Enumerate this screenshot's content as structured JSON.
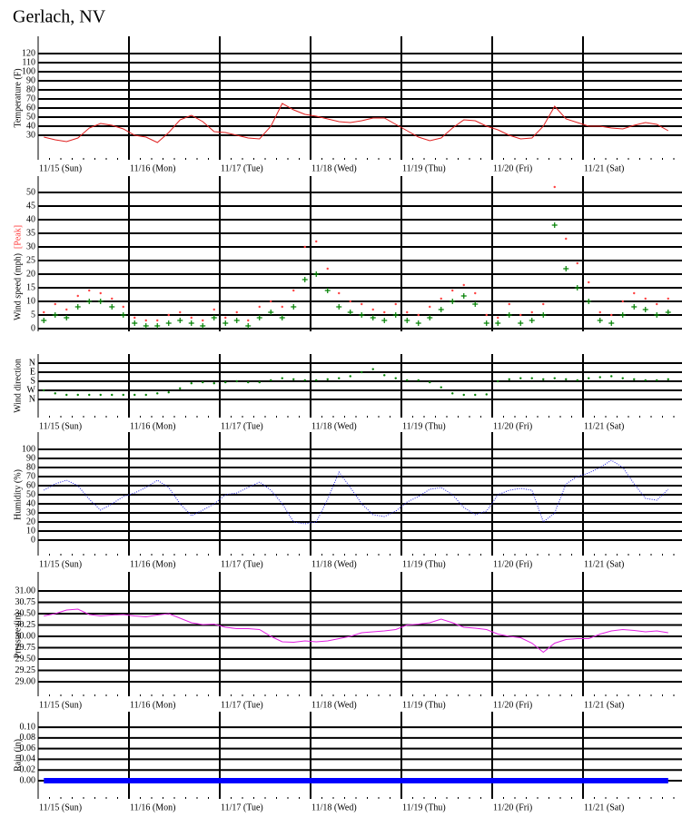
{
  "title": "Gerlach, NV",
  "chart_data": [
    {
      "type": "line",
      "ylabel": "Temperature (F)",
      "color": "#e02020",
      "categories": [
        "11/15 (Sun)",
        "11/16 (Mon)",
        "11/17 (Tue)",
        "11/18 (Wed)",
        "11/19 (Thu)",
        "11/20 (Fri)",
        "11/21 (Sat)"
      ],
      "ylim": [
        3,
        139
      ],
      "yticks": [
        30,
        40,
        50,
        60,
        70,
        80,
        90,
        100,
        110,
        120
      ],
      "grid": true,
      "series": [
        {
          "color": "#e02020",
          "values": [
            [
              28,
              25,
              23,
              27,
              38,
              43,
              41,
              37
            ],
            [
              30,
              28,
              22,
              33,
              47,
              52,
              45,
              34
            ],
            [
              33,
              30,
              27,
              26,
              40,
              65,
              58,
              53
            ],
            [
              51,
              48,
              45,
              44,
              46,
              49,
              49,
              42
            ],
            [
              35,
              28,
              24,
              27,
              38,
              47,
              46,
              40
            ],
            [
              36,
              30,
              26,
              27,
              40,
              62,
              48,
              44
            ],
            [
              40,
              40,
              38,
              37,
              41,
              44,
              42,
              35
            ]
          ]
        }
      ]
    },
    {
      "type": "scatter",
      "ylabel": "Wind speed (mph)",
      "ylim": [
        -1,
        56
      ],
      "yticks": [
        0,
        5,
        10,
        15,
        20,
        25,
        30,
        35,
        40,
        45,
        50
      ],
      "grid": true,
      "series": [
        {
          "name": "[Peak]",
          "color": "#ff4040",
          "marker": "dot",
          "values": [
            [
              6,
              9,
              7,
              12,
              14,
              13,
              11,
              8
            ],
            [
              4,
              3,
              3,
              5,
              6,
              4,
              3,
              7
            ],
            [
              4,
              6,
              3,
              8,
              10,
              8,
              14,
              30
            ],
            [
              32,
              22,
              13,
              10,
              9,
              7,
              6,
              9
            ],
            [
              6,
              5,
              8,
              11,
              14,
              16,
              13,
              5
            ],
            [
              4,
              9,
              5,
              6,
              9,
              52,
              33,
              24
            ],
            [
              17,
              6,
              5,
              10,
              13,
              11,
              9,
              11
            ]
          ]
        },
        {
          "color": "#008000",
          "marker": "plus",
          "values": [
            [
              3,
              5,
              4,
              8,
              10,
              10,
              8,
              5
            ],
            [
              2,
              1,
              1,
              2,
              3,
              2,
              1,
              4
            ],
            [
              2,
              3,
              1,
              4,
              6,
              4,
              8,
              18
            ],
            [
              20,
              14,
              8,
              6,
              5,
              4,
              3,
              5
            ],
            [
              3,
              2,
              4,
              7,
              10,
              12,
              9,
              2
            ],
            [
              2,
              5,
              2,
              3,
              5,
              38,
              22,
              15
            ],
            [
              10,
              3,
              2,
              5,
              8,
              7,
              5,
              6
            ]
          ]
        }
      ]
    },
    {
      "type": "scatter",
      "ylabel": "Wind direction",
      "categories": [
        "11/15 (Sun)",
        "11/16 (Mon)",
        "11/17 (Tue)",
        "11/18 (Wed)",
        "11/19 (Thu)",
        "11/20 (Fri)",
        "11/21 (Sat)"
      ],
      "ylim": [
        540,
        -90
      ],
      "yticks": [
        {
          "value": 0,
          "label": "N"
        },
        {
          "value": 90,
          "label": "E"
        },
        {
          "value": 180,
          "label": "S"
        },
        {
          "value": 270,
          "label": "W"
        },
        {
          "value": 360,
          "label": "N"
        }
      ],
      "grid": true,
      "series": [
        {
          "color": "#008000",
          "marker": "dot",
          "values": [
            [
              270,
              300,
              315,
              315,
              315,
              315,
              315,
              315
            ],
            [
              315,
              315,
              300,
              290,
              250,
              200,
              190,
              200
            ],
            [
              190,
              180,
              190,
              190,
              170,
              150,
              160,
              170
            ],
            [
              170,
              160,
              150,
              130,
              90,
              60,
              120,
              150
            ],
            [
              170,
              170,
              190,
              240,
              300,
              315,
              315,
              310
            ],
            [
              180,
              160,
              150,
              150,
              160,
              150,
              160,
              170
            ],
            [
              150,
              140,
              130,
              150,
              160,
              170,
              170,
              160
            ]
          ]
        }
      ]
    },
    {
      "type": "line",
      "ylabel": "Humidity (%)",
      "linestyle": "dotted",
      "categories": [
        "11/15 (Sun)",
        "11/16 (Mon)",
        "11/17 (Tue)",
        "11/18 (Wed)",
        "11/19 (Thu)",
        "11/20 (Fri)",
        "11/21 (Sat)"
      ],
      "ylim": [
        -17,
        119
      ],
      "yticks": [
        0,
        10,
        20,
        30,
        40,
        50,
        60,
        70,
        80,
        90,
        100
      ],
      "grid": true,
      "series": [
        {
          "color": "#2020e0",
          "values": [
            [
              55,
              62,
              66,
              60,
              45,
              33,
              40,
              48
            ],
            [
              52,
              58,
              66,
              58,
              40,
              27,
              33,
              40
            ],
            [
              50,
              52,
              58,
              64,
              55,
              40,
              20,
              18
            ],
            [
              20,
              45,
              75,
              58,
              40,
              28,
              26,
              32
            ],
            [
              42,
              48,
              56,
              58,
              50,
              36,
              28,
              32
            ],
            [
              50,
              55,
              57,
              55,
              20,
              30,
              62,
              70
            ],
            [
              74,
              80,
              88,
              80,
              62,
              46,
              44,
              56
            ]
          ]
        }
      ]
    },
    {
      "type": "line",
      "ylabel": "Pressure (in)",
      "categories": [
        "11/15 (Sun)",
        "11/16 (Mon)",
        "11/17 (Tue)",
        "11/18 (Wed)",
        "11/19 (Thu)",
        "11/20 (Fri)",
        "11/21 (Sat)"
      ],
      "ylim": [
        28.68,
        31.42
      ],
      "yticks": [
        {
          "value": 29,
          "label": "29.00"
        },
        {
          "value": 29.25,
          "label": "29.25"
        },
        {
          "value": 29.5,
          "label": "29.50"
        },
        {
          "value": 29.75,
          "label": "29.75"
        },
        {
          "value": 30,
          "label": "30.00"
        },
        {
          "value": 30.25,
          "label": "30.25"
        },
        {
          "value": 30.5,
          "label": "30.50"
        },
        {
          "value": 30.75,
          "label": "30.75"
        },
        {
          "value": 31,
          "label": "31.00"
        }
      ],
      "grid": true,
      "series": [
        {
          "color": "#e020e0",
          "values": [
            [
              30.45,
              30.5,
              30.58,
              30.6,
              30.48,
              30.45,
              30.47,
              30.48
            ],
            [
              30.45,
              30.43,
              30.47,
              30.5,
              30.4,
              30.3,
              30.26,
              30.27
            ],
            [
              30.2,
              30.17,
              30.17,
              30.15,
              30.0,
              29.88,
              29.87,
              29.9
            ],
            [
              29.88,
              29.9,
              29.95,
              30.0,
              30.08,
              30.1,
              30.12,
              30.15
            ],
            [
              30.25,
              30.27,
              30.3,
              30.38,
              30.3,
              30.2,
              30.18,
              30.15
            ],
            [
              30.05,
              30.0,
              29.97,
              29.85,
              29.65,
              29.85,
              29.93,
              29.95
            ],
            [
              29.95,
              30.05,
              30.12,
              30.15,
              30.13,
              30.1,
              30.12,
              30.08
            ]
          ]
        }
      ]
    },
    {
      "type": "line",
      "ylabel": "Rain (in)",
      "linewidth": 6,
      "categories": [
        "11/15 (Sun)",
        "11/16 (Mon)",
        "11/17 (Tue)",
        "11/18 (Wed)",
        "11/19 (Thu)",
        "11/20 (Fri)",
        "11/21 (Sat)"
      ],
      "ylim": [
        -0.034,
        0.129
      ],
      "yticks": [
        {
          "value": 0,
          "label": "0.00"
        },
        0.02,
        0.04,
        0.06,
        0.08,
        {
          "value": 0.1,
          "label": "0.10"
        }
      ],
      "grid": true,
      "series": [
        {
          "color": "#0000ff",
          "values": [
            [
              0,
              0,
              0,
              0,
              0,
              0,
              0,
              0
            ],
            [
              0,
              0,
              0,
              0,
              0,
              0,
              0,
              0
            ],
            [
              0,
              0,
              0,
              0,
              0,
              0,
              0,
              0
            ],
            [
              0,
              0,
              0,
              0,
              0,
              0,
              0,
              0
            ],
            [
              0,
              0,
              0,
              0,
              0,
              0,
              0,
              0
            ],
            [
              0,
              0,
              0,
              0,
              0,
              0,
              0,
              0
            ],
            [
              0,
              0,
              0,
              0,
              0,
              0,
              0,
              0
            ]
          ]
        }
      ]
    }
  ]
}
